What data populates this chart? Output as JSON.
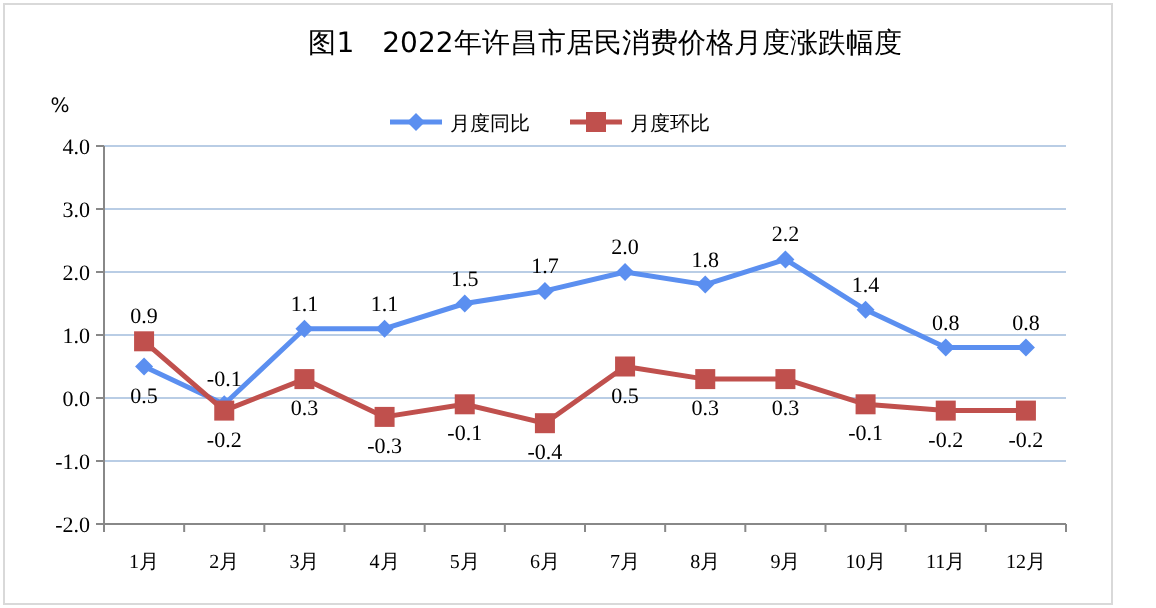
{
  "chart_data": {
    "type": "line",
    "title": "图1　2022年许昌市居民消费价格月度涨跌幅度",
    "ylabel": "%",
    "categories": [
      "1月",
      "2月",
      "3月",
      "4月",
      "5月",
      "6月",
      "7月",
      "8月",
      "9月",
      "10月",
      "11月",
      "12月"
    ],
    "series": [
      {
        "name": "月度同比",
        "color": "#5b8ff0",
        "marker": "diamond",
        "values": [
          0.5,
          -0.1,
          1.1,
          1.1,
          1.5,
          1.7,
          2.0,
          1.8,
          2.2,
          1.4,
          0.8,
          0.8
        ],
        "value_labels": [
          "0.5",
          "-0.1",
          "1.1",
          "1.1",
          "1.5",
          "1.7",
          "2.0",
          "1.8",
          "2.2",
          "1.4",
          "0.8",
          "0.8"
        ]
      },
      {
        "name": "月度环比",
        "color": "#c0504d",
        "marker": "square",
        "values": [
          0.9,
          -0.2,
          0.3,
          -0.3,
          -0.1,
          -0.4,
          0.5,
          0.3,
          0.3,
          -0.1,
          -0.2,
          -0.2
        ],
        "value_labels": [
          "0.9",
          "-0.2",
          "0.3",
          "-0.3",
          "-0.1",
          "-0.4",
          "0.5",
          "0.3",
          "0.3",
          "-0.1",
          "-0.2",
          "-0.2"
        ]
      }
    ],
    "ylim": [
      -2.0,
      4.0
    ],
    "yticks": [
      {
        "value": -2,
        "label": "-2.0"
      },
      {
        "value": -1,
        "label": "-1.0"
      },
      {
        "value": 0,
        "label": "0.0"
      },
      {
        "value": 1,
        "label": "1.0"
      },
      {
        "value": 2,
        "label": "2.0"
      },
      {
        "value": 3,
        "label": "3.0"
      },
      {
        "value": 4,
        "label": "4.0"
      }
    ],
    "grid": "y",
    "legend": "top"
  }
}
